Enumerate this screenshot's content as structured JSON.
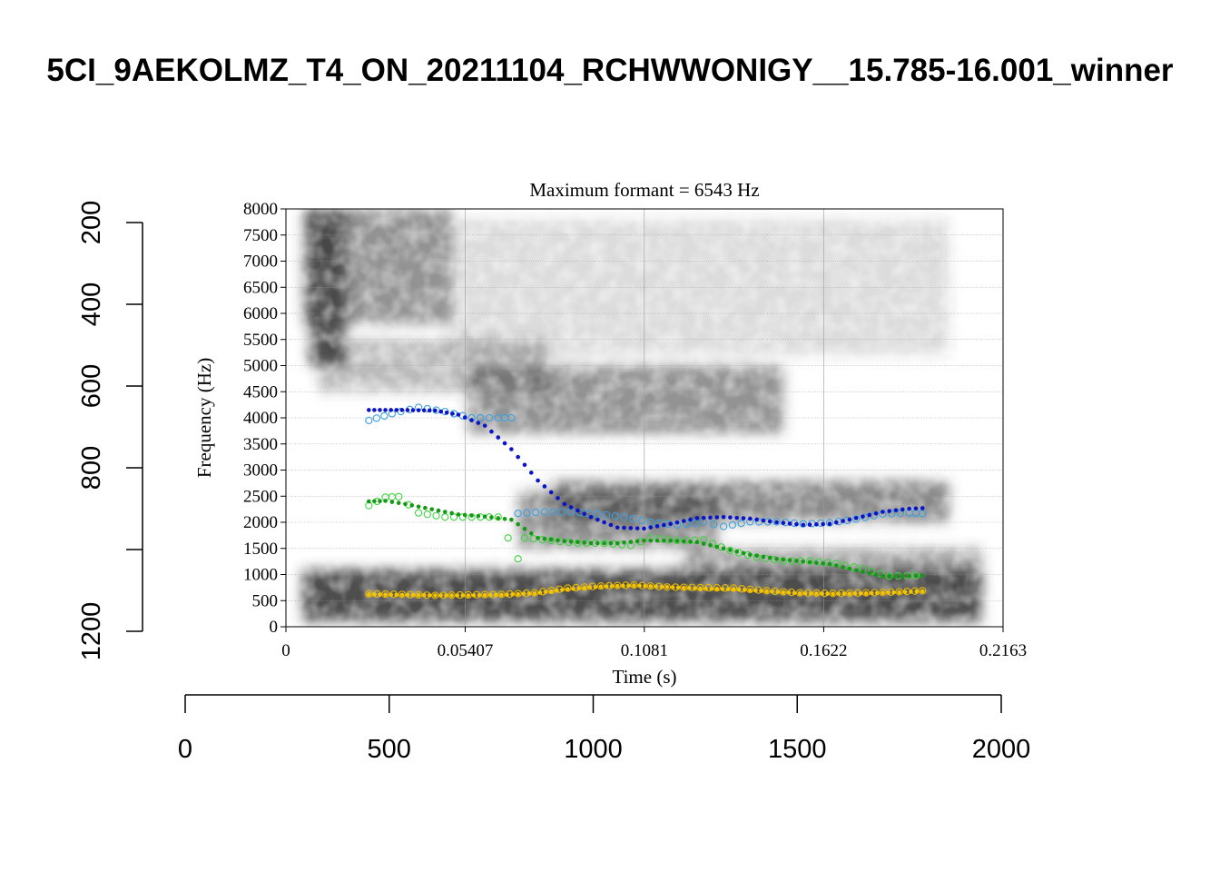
{
  "title": "5CI_9AEKOLMZ_T4_ON_20211104_RCHWWONIGY__15.785-16.001_winner",
  "colors": {
    "f1": "#f5c400",
    "f1_ring": "#e8b800",
    "f2": "#159a15",
    "f2_ring": "#3fd33f",
    "f3": "#0a14c8",
    "f3_ring": "#3ba0e0",
    "spectrogram": "#3a3a3a"
  },
  "chart_data": [
    {
      "type": "spectrogram",
      "title": "Maximum formant = 6543 Hz",
      "xlabel": "Time (s)",
      "ylabel": "Frequency (Hz)",
      "xlim": [
        0,
        0.2163
      ],
      "ylim": [
        0,
        8000
      ],
      "x_ticks": [
        "0",
        "0.05407",
        "0.1081",
        "0.1622",
        "0.2163"
      ],
      "y_ticks": [
        "0",
        "500",
        "1000",
        "1500",
        "2000",
        "2500",
        "3000",
        "3500",
        "4000",
        "4500",
        "5000",
        "5500",
        "6000",
        "6500",
        "7000",
        "7500",
        "8000"
      ],
      "grid": true,
      "series": [
        {
          "color_key": "f3",
          "tracked": [
            [
              0.025,
              4150
            ],
            [
              0.035,
              4150
            ],
            [
              0.045,
              4140
            ],
            [
              0.052,
              4060
            ],
            [
              0.06,
              3850
            ],
            [
              0.068,
              3400
            ],
            [
              0.076,
              2800
            ],
            [
              0.084,
              2350
            ],
            [
              0.092,
              2100
            ],
            [
              0.1,
              1900
            ],
            [
              0.108,
              1880
            ],
            [
              0.116,
              1970
            ],
            [
              0.124,
              2080
            ],
            [
              0.132,
              2100
            ],
            [
              0.14,
              2070
            ],
            [
              0.148,
              2000
            ],
            [
              0.156,
              1950
            ],
            [
              0.164,
              1970
            ],
            [
              0.172,
              2080
            ],
            [
              0.18,
              2200
            ],
            [
              0.188,
              2260
            ],
            [
              0.192,
              2270
            ]
          ],
          "raw": [
            [
              0.025,
              3950
            ],
            [
              0.032,
              4080
            ],
            [
              0.04,
              4200
            ],
            [
              0.048,
              4120
            ],
            [
              0.056,
              4000
            ],
            [
              0.064,
              4000
            ],
            [
              0.068,
              4000
            ],
            [
              0.07,
              2170
            ],
            [
              0.078,
              2200
            ],
            [
              0.086,
              2200
            ],
            [
              0.094,
              2160
            ],
            [
              0.102,
              2100
            ],
            [
              0.11,
              2000
            ],
            [
              0.118,
              1950
            ],
            [
              0.126,
              2000
            ],
            [
              0.132,
              1920
            ],
            [
              0.14,
              2010
            ],
            [
              0.148,
              2010
            ],
            [
              0.156,
              1970
            ],
            [
              0.164,
              1990
            ],
            [
              0.172,
              2060
            ],
            [
              0.18,
              2160
            ],
            [
              0.188,
              2180
            ],
            [
              0.192,
              2170
            ]
          ]
        },
        {
          "color_key": "f2",
          "tracked": [
            [
              0.025,
              2400
            ],
            [
              0.03,
              2410
            ],
            [
              0.036,
              2350
            ],
            [
              0.044,
              2250
            ],
            [
              0.052,
              2150
            ],
            [
              0.06,
              2110
            ],
            [
              0.068,
              2050
            ],
            [
              0.076,
              1700
            ],
            [
              0.084,
              1640
            ],
            [
              0.092,
              1600
            ],
            [
              0.1,
              1600
            ],
            [
              0.108,
              1650
            ],
            [
              0.116,
              1650
            ],
            [
              0.124,
              1620
            ],
            [
              0.132,
              1500
            ],
            [
              0.14,
              1380
            ],
            [
              0.148,
              1300
            ],
            [
              0.156,
              1250
            ],
            [
              0.164,
              1200
            ],
            [
              0.172,
              1080
            ],
            [
              0.18,
              970
            ],
            [
              0.188,
              970
            ],
            [
              0.192,
              980
            ]
          ],
          "raw": [
            [
              0.025,
              2320
            ],
            [
              0.03,
              2480
            ],
            [
              0.034,
              2490
            ],
            [
              0.04,
              2180
            ],
            [
              0.048,
              2100
            ],
            [
              0.056,
              2100
            ],
            [
              0.064,
              2100
            ],
            [
              0.07,
              1300
            ],
            [
              0.072,
              1700
            ],
            [
              0.08,
              1650
            ],
            [
              0.088,
              1600
            ],
            [
              0.096,
              1600
            ],
            [
              0.104,
              1560
            ],
            [
              0.11,
              1700
            ],
            [
              0.118,
              1650
            ],
            [
              0.126,
              1660
            ],
            [
              0.134,
              1460
            ],
            [
              0.142,
              1330
            ],
            [
              0.15,
              1260
            ],
            [
              0.158,
              1260
            ],
            [
              0.166,
              1210
            ],
            [
              0.174,
              1110
            ],
            [
              0.182,
              970
            ],
            [
              0.19,
              980
            ]
          ]
        },
        {
          "color_key": "f1",
          "tracked": [
            [
              0.025,
              620
            ],
            [
              0.035,
              610
            ],
            [
              0.045,
              600
            ],
            [
              0.055,
              600
            ],
            [
              0.065,
              610
            ],
            [
              0.075,
              640
            ],
            [
              0.085,
              720
            ],
            [
              0.095,
              770
            ],
            [
              0.105,
              790
            ],
            [
              0.115,
              760
            ],
            [
              0.125,
              730
            ],
            [
              0.135,
              720
            ],
            [
              0.145,
              680
            ],
            [
              0.155,
              640
            ],
            [
              0.165,
              630
            ],
            [
              0.175,
              640
            ],
            [
              0.185,
              660
            ],
            [
              0.192,
              680
            ]
          ],
          "raw": [
            [
              0.025,
              630
            ],
            [
              0.035,
              620
            ],
            [
              0.045,
              600
            ],
            [
              0.055,
              610
            ],
            [
              0.065,
              620
            ],
            [
              0.075,
              650
            ],
            [
              0.085,
              740
            ],
            [
              0.095,
              780
            ],
            [
              0.105,
              800
            ],
            [
              0.115,
              760
            ],
            [
              0.125,
              750
            ],
            [
              0.135,
              740
            ],
            [
              0.145,
              690
            ],
            [
              0.155,
              650
            ],
            [
              0.165,
              640
            ],
            [
              0.175,
              650
            ],
            [
              0.185,
              670
            ],
            [
              0.192,
              690
            ]
          ]
        }
      ]
    },
    {
      "type": "axes",
      "x_ticks": [
        "0",
        "500",
        "1000",
        "1500",
        "2000"
      ],
      "xlim": [
        0,
        2000
      ],
      "y_ticks": [
        "200",
        "400",
        "600",
        "800",
        "",
        "1200"
      ],
      "y_values": [
        200,
        400,
        600,
        800,
        1000,
        1200
      ],
      "ylim": [
        200,
        1200
      ],
      "y_reversed": true
    }
  ]
}
